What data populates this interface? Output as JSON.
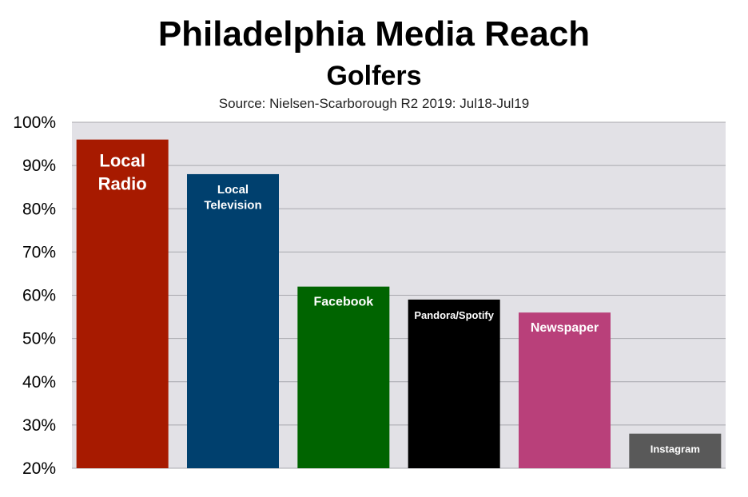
{
  "chart_data": {
    "type": "bar",
    "title": "Philadelphia Media Reach",
    "subtitle": "Golfers",
    "source": "Source: Nielsen-Scarborough R2 2019: Jul18-Jul19",
    "xlabel": "",
    "ylabel": "",
    "ylim": [
      20,
      100
    ],
    "yticks": [
      "20%",
      "30%",
      "40%",
      "50%",
      "60%",
      "70%",
      "80%",
      "90%",
      "100%"
    ],
    "grid": true,
    "legend": "none",
    "plot_background": "#e2e1e6",
    "bars": [
      {
        "label_lines": [
          "Local",
          "Radio"
        ],
        "value": 96,
        "color": "#a71a00",
        "label_size": "large"
      },
      {
        "label_lines": [
          "Local",
          "Television"
        ],
        "value": 88,
        "color": "#00406e",
        "label_size": "small"
      },
      {
        "label_lines": [
          "Facebook"
        ],
        "value": 62,
        "color": "#006400",
        "label_size": "medium"
      },
      {
        "label_lines": [
          "Pandora/Spotify"
        ],
        "value": 59,
        "color": "#000000",
        "label_size": "xsmall"
      },
      {
        "label_lines": [
          "Newspaper"
        ],
        "value": 56,
        "color": "#b9407a",
        "label_size": "medium"
      },
      {
        "label_lines": [
          "Instagram"
        ],
        "value": 28,
        "color": "#595959",
        "label_size": "xsmall"
      }
    ]
  }
}
